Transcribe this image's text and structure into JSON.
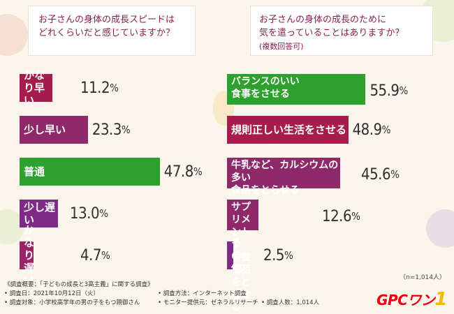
{
  "colors": {
    "crimson": "#a51d4c",
    "plum": "#8f2a6a",
    "green": "#2ea02e",
    "violet": "#7e2a86",
    "magenta": "#9b2468"
  },
  "question_left": {
    "text": "お子さんの身体の成長スピードは\nどれくらいだと感じていますか？"
  },
  "question_right": {
    "text": "お子さんの身体の成長のために\n気を遣っていることはありますか？",
    "sub": "(複数回答可)"
  },
  "chart_data": [
    {
      "type": "bar",
      "orientation": "horizontal",
      "title": "お子さんの身体の成長スピードはどれくらいだと感じていますか？",
      "categories": [
        "かなり早い",
        "少し早い",
        "普通",
        "少し遅い",
        "かなり遅い"
      ],
      "values": [
        11.2,
        23.3,
        47.8,
        13.0,
        4.7
      ],
      "value_labels": [
        "11.2",
        "23.3",
        "47.8",
        "13.0",
        "4.7"
      ],
      "unit": "%",
      "bar_colors": [
        "#a51d4c",
        "#8f2a6a",
        "#2ea02e",
        "#7e2a86",
        "#9b2468"
      ]
    },
    {
      "type": "bar",
      "orientation": "horizontal",
      "title": "お子さんの身体の成長のために気を遣っていることはありますか？",
      "subtitle": "(複数回答可)",
      "categories": [
        "バランスのいい\n食事をさせる",
        "規則正しい生活をさせる",
        "牛乳など、カルシウムの多い\n食品をとらせる",
        "サプリメントや\n栄養食品をとらせる",
        "その他"
      ],
      "values": [
        55.9,
        48.9,
        45.6,
        12.6,
        2.5
      ],
      "value_labels": [
        "55.9",
        "48.9",
        "45.6",
        "12.6",
        "2.5"
      ],
      "unit": "%",
      "bar_colors": [
        "#2ea02e",
        "#a51d4c",
        "#8f2a6a",
        "#8f2a6a",
        "#7e2a86"
      ]
    }
  ],
  "note": "（n=1,014人）",
  "footer": {
    "summary": "《調査概要：「子どもの成長と3高主義」に関する調査》",
    "date": "• 調査日：2021年10月12日（火）",
    "method": "• 調査方法：インターネット調査",
    "target": "• 調査対象：小学校高学年の男の子をもつ親御さん",
    "provider": "• モニター提供元：ゼネラルリサーチ",
    "count": "• 調査人数：1,014人"
  },
  "logo": {
    "text": "GPCワン",
    "mark": "1"
  }
}
